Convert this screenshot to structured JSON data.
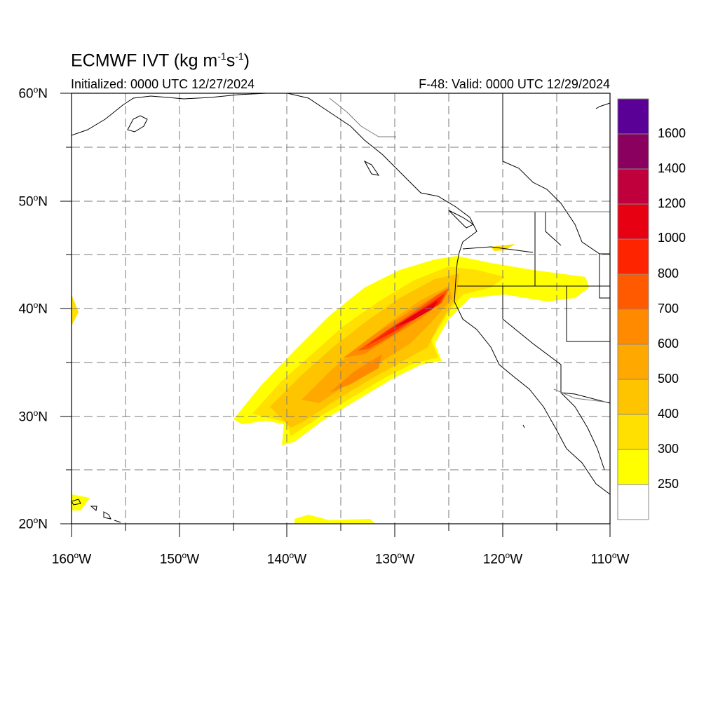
{
  "header": {
    "title": "ECMWF IVT (kg m",
    "title_exp1": "-1",
    "title_mid": "s",
    "title_exp2": "-1",
    "title_end": ")",
    "initialized": "Initialized: 0000 UTC 12/27/2024",
    "valid": "F-48: Valid: 0000 UTC 12/29/2024"
  },
  "axes": {
    "lat_labels": [
      {
        "text": "60",
        "suffix": "N"
      },
      {
        "text": "50",
        "suffix": "N"
      },
      {
        "text": "40",
        "suffix": "N"
      },
      {
        "text": "30",
        "suffix": "N"
      },
      {
        "text": "20",
        "suffix": "N"
      }
    ],
    "lon_labels": [
      {
        "text": "160",
        "suffix": "W"
      },
      {
        "text": "150",
        "suffix": "W"
      },
      {
        "text": "140",
        "suffix": "W"
      },
      {
        "text": "130",
        "suffix": "W"
      },
      {
        "text": "120",
        "suffix": "W"
      },
      {
        "text": "110",
        "suffix": "W"
      }
    ]
  },
  "colorbar": {
    "labels": [
      "1600",
      "1400",
      "1200",
      "1000",
      "800",
      "700",
      "600",
      "500",
      "400",
      "300",
      "250"
    ],
    "colors": [
      "#5a0096",
      "#8a005e",
      "#c0003c",
      "#e60012",
      "#ff2400",
      "#ff5a00",
      "#ff8a00",
      "#ffa800",
      "#ffc400",
      "#ffe000",
      "#ffff00",
      "#ffffff"
    ]
  }
}
